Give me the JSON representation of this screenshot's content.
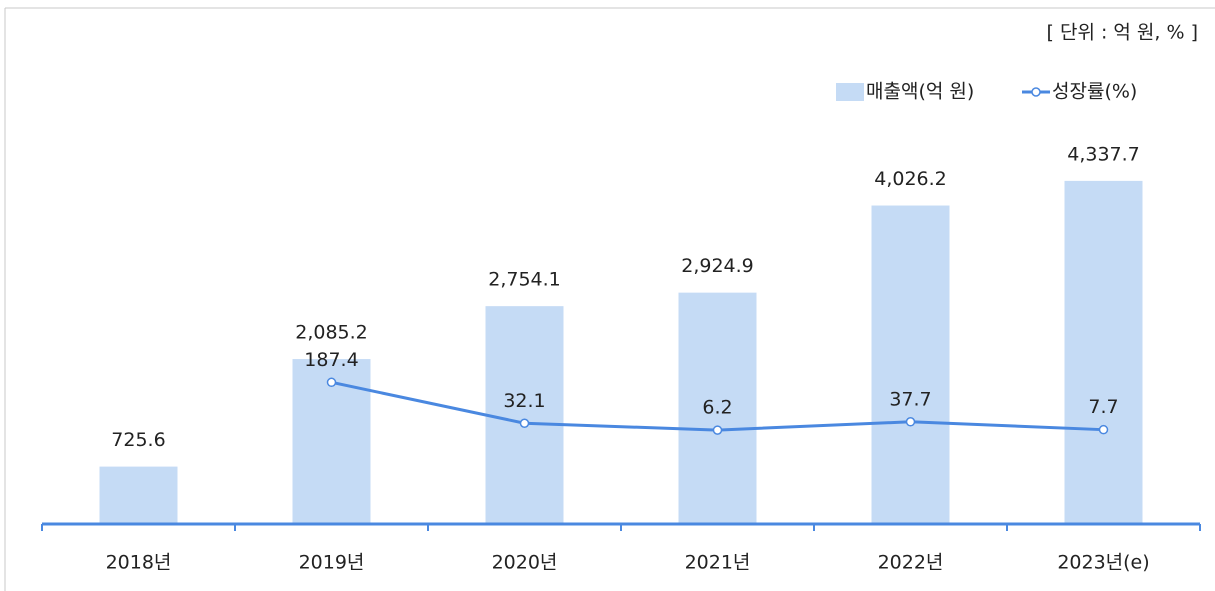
{
  "chart_data": {
    "type": "bar",
    "unit_note": "[ 단위 : 억 원, % ]",
    "categories": [
      "2018년",
      "2019년",
      "2020년",
      "2021년",
      "2022년",
      "2023년(e)"
    ],
    "series": [
      {
        "name": "매출액(억 원)",
        "type": "bar",
        "color": "#c5dbf5",
        "values": [
          725.6,
          2085.2,
          2754.1,
          2924.9,
          4026.2,
          4337.7
        ],
        "value_labels": [
          "725.6",
          "2,085.2",
          "2,754.1",
          "2,924.9",
          "4,026.2",
          "4,337.7"
        ]
      },
      {
        "name": "성장률(%)",
        "type": "line",
        "axis": "y2",
        "color": "#4a88e0",
        "values": [
          null,
          187.4,
          32.1,
          6.2,
          37.7,
          7.7
        ]
      }
    ],
    "ylim": [
      0,
      5000
    ],
    "y2lim": [
      -350,
      1150
    ],
    "legend": "top-right"
  }
}
